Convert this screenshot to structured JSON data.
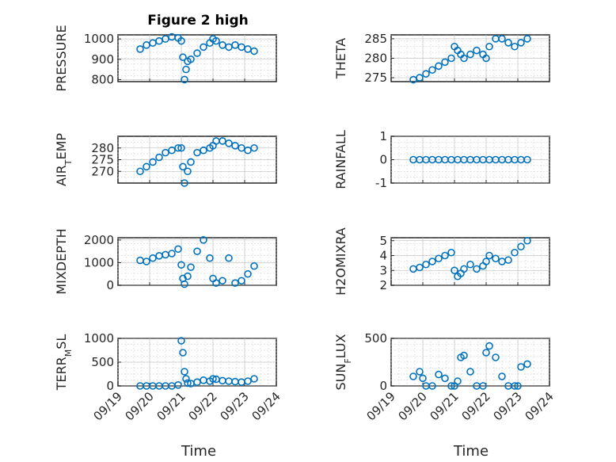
{
  "figure": {
    "title": "Figure 2 high",
    "marker_color": "#0072bd",
    "x_tick_labels": [
      "09/19",
      "09/20",
      "09/21",
      "09/22",
      "09/23",
      "09/24"
    ],
    "xlabel": "Time"
  },
  "chart_data": [
    {
      "id": "pressure",
      "type": "scatter",
      "ylabel": "PRESSURE",
      "xlim": [
        0,
        5
      ],
      "ylim": [
        790,
        1020
      ],
      "yticks": [
        800,
        900,
        1000
      ],
      "series": [
        {
          "x": [
            0.7,
            0.9,
            1.1,
            1.3,
            1.5,
            1.7,
            1.9,
            2.0,
            2.05,
            2.1,
            2.15,
            2.2,
            2.3,
            2.5,
            2.7,
            2.9,
            3.0,
            3.1,
            3.3,
            3.5,
            3.7,
            3.9,
            4.1,
            4.3
          ],
          "y": [
            950,
            970,
            980,
            990,
            1000,
            1010,
            1005,
            990,
            910,
            800,
            850,
            890,
            900,
            930,
            960,
            980,
            1000,
            990,
            970,
            960,
            970,
            960,
            950,
            940
          ]
        }
      ]
    },
    {
      "id": "theta",
      "type": "scatter",
      "ylabel": "THETA",
      "xlim": [
        0,
        5
      ],
      "ylim": [
        274,
        286
      ],
      "yticks": [
        275,
        280,
        285
      ],
      "series": [
        {
          "x": [
            0.7,
            0.9,
            1.1,
            1.3,
            1.5,
            1.7,
            1.9,
            2.0,
            2.1,
            2.2,
            2.3,
            2.5,
            2.7,
            2.9,
            3.0,
            3.1,
            3.3,
            3.5,
            3.7,
            3.9,
            4.1,
            4.3
          ],
          "y": [
            274.5,
            275,
            276,
            277,
            278,
            279,
            280,
            283,
            282,
            281,
            280,
            281,
            282,
            281,
            280,
            283,
            285,
            285,
            284,
            283,
            284,
            285
          ]
        }
      ]
    },
    {
      "id": "air_temp",
      "type": "scatter",
      "ylabel": "AIR_TEMP",
      "xlim": [
        0,
        5
      ],
      "ylim": [
        265,
        285
      ],
      "yticks": [
        270,
        275,
        280
      ],
      "series": [
        {
          "x": [
            0.7,
            0.9,
            1.1,
            1.3,
            1.5,
            1.7,
            1.9,
            2.0,
            2.05,
            2.1,
            2.2,
            2.3,
            2.5,
            2.7,
            2.9,
            3.0,
            3.1,
            3.3,
            3.5,
            3.7,
            3.9,
            4.1,
            4.3
          ],
          "y": [
            270,
            272,
            274,
            276,
            278,
            279,
            280,
            280,
            272,
            265,
            270,
            274,
            278,
            279,
            280,
            281,
            283,
            283,
            282,
            281,
            280,
            279,
            280
          ]
        }
      ]
    },
    {
      "id": "rainfall",
      "type": "scatter",
      "ylabel": "RAINFALL",
      "xlim": [
        0,
        5
      ],
      "ylim": [
        -1,
        1
      ],
      "yticks": [
        -1,
        0,
        1
      ],
      "series": [
        {
          "x": [
            0.7,
            0.9,
            1.1,
            1.3,
            1.5,
            1.7,
            1.9,
            2.1,
            2.3,
            2.5,
            2.7,
            2.9,
            3.1,
            3.3,
            3.5,
            3.7,
            3.9,
            4.1,
            4.3
          ],
          "y": [
            0,
            0,
            0,
            0,
            0,
            0,
            0,
            0,
            0,
            0,
            0,
            0,
            0,
            0,
            0,
            0,
            0,
            0,
            0
          ]
        }
      ]
    },
    {
      "id": "mixdepth",
      "type": "scatter",
      "ylabel": "MIXDEPTH",
      "xlim": [
        0,
        5
      ],
      "ylim": [
        0,
        2100
      ],
      "yticks": [
        0,
        1000,
        2000
      ],
      "series": [
        {
          "x": [
            0.7,
            0.9,
            1.1,
            1.3,
            1.5,
            1.7,
            1.9,
            2.0,
            2.05,
            2.1,
            2.2,
            2.3,
            2.5,
            2.7,
            2.9,
            3.0,
            3.1,
            3.3,
            3.5,
            3.7,
            3.9,
            4.1,
            4.3
          ],
          "y": [
            1100,
            1050,
            1200,
            1300,
            1350,
            1400,
            1600,
            900,
            300,
            50,
            400,
            800,
            1500,
            2000,
            1200,
            300,
            100,
            200,
            1200,
            100,
            200,
            500,
            850
          ]
        }
      ]
    },
    {
      "id": "h2omixra",
      "type": "scatter",
      "ylabel": "H2OMIXRA",
      "xlim": [
        0,
        5
      ],
      "ylim": [
        2,
        5.2
      ],
      "yticks": [
        2,
        3,
        4,
        5
      ],
      "series": [
        {
          "x": [
            0.7,
            0.9,
            1.1,
            1.3,
            1.5,
            1.7,
            1.9,
            2.0,
            2.1,
            2.2,
            2.3,
            2.5,
            2.7,
            2.9,
            3.0,
            3.1,
            3.3,
            3.5,
            3.7,
            3.9,
            4.1,
            4.3
          ],
          "y": [
            3.1,
            3.2,
            3.4,
            3.6,
            3.8,
            4.0,
            4.2,
            3.0,
            2.6,
            2.8,
            3.1,
            3.4,
            3.1,
            3.3,
            3.6,
            4.0,
            3.8,
            3.6,
            3.7,
            4.2,
            4.6,
            5.0
          ]
        }
      ]
    },
    {
      "id": "terr_msl",
      "type": "scatter",
      "ylabel": "TERR_MSL",
      "xlim": [
        0,
        5
      ],
      "ylim": [
        0,
        1000
      ],
      "yticks": [
        0,
        500,
        1000
      ],
      "series": [
        {
          "x": [
            0.7,
            0.9,
            1.1,
            1.3,
            1.5,
            1.7,
            1.9,
            2.0,
            2.05,
            2.1,
            2.15,
            2.2,
            2.3,
            2.5,
            2.7,
            2.9,
            3.0,
            3.1,
            3.3,
            3.5,
            3.7,
            3.9,
            4.1,
            4.3
          ],
          "y": [
            0,
            0,
            0,
            0,
            0,
            0,
            20,
            950,
            700,
            300,
            150,
            60,
            50,
            80,
            120,
            100,
            150,
            140,
            110,
            100,
            90,
            80,
            100,
            150
          ]
        }
      ]
    },
    {
      "id": "sun_flux",
      "type": "scatter",
      "ylabel": "SUN_FLUX",
      "xlim": [
        0,
        5
      ],
      "ylim": [
        0,
        500
      ],
      "yticks": [
        0,
        500
      ],
      "series": [
        {
          "x": [
            0.7,
            0.9,
            1.0,
            1.1,
            1.3,
            1.5,
            1.7,
            1.9,
            2.0,
            2.1,
            2.2,
            2.3,
            2.5,
            2.7,
            2.9,
            3.0,
            3.1,
            3.3,
            3.5,
            3.7,
            3.9,
            4.0,
            4.1,
            4.3
          ],
          "y": [
            100,
            150,
            80,
            0,
            0,
            120,
            80,
            0,
            0,
            50,
            300,
            320,
            150,
            0,
            0,
            350,
            420,
            300,
            100,
            0,
            0,
            0,
            200,
            230
          ]
        }
      ]
    }
  ]
}
